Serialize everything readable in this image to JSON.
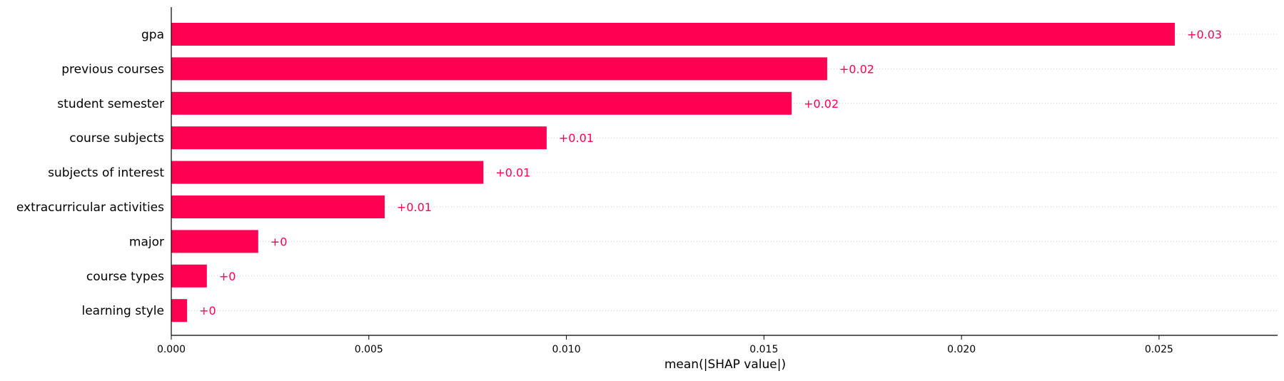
{
  "chart_data": {
    "type": "bar",
    "orientation": "horizontal",
    "categories": [
      "gpa",
      "previous courses",
      "student semester",
      "course subjects",
      "subjects of interest",
      "extracurricular activities",
      "major",
      "course types",
      "learning style"
    ],
    "values": [
      0.0254,
      0.0166,
      0.0157,
      0.0095,
      0.0079,
      0.0054,
      0.0022,
      0.0009,
      0.0004
    ],
    "value_labels": [
      "+0.03",
      "+0.02",
      "+0.02",
      "+0.01",
      "+0.01",
      "+0.01",
      "+0",
      "+0",
      "+0"
    ],
    "xlabel": "mean(|SHAP value|)",
    "ylabel": "",
    "xlim": [
      0,
      0.028
    ],
    "x_ticks": [
      0.0,
      0.005,
      0.01,
      0.015,
      0.02,
      0.025
    ],
    "x_tick_labels": [
      "0.000",
      "0.005",
      "0.010",
      "0.015",
      "0.020",
      "0.025"
    ],
    "grid": "dotted horizontal guide lines per bar",
    "bar_color": "#ff0052",
    "label_color": "#ff0052"
  }
}
